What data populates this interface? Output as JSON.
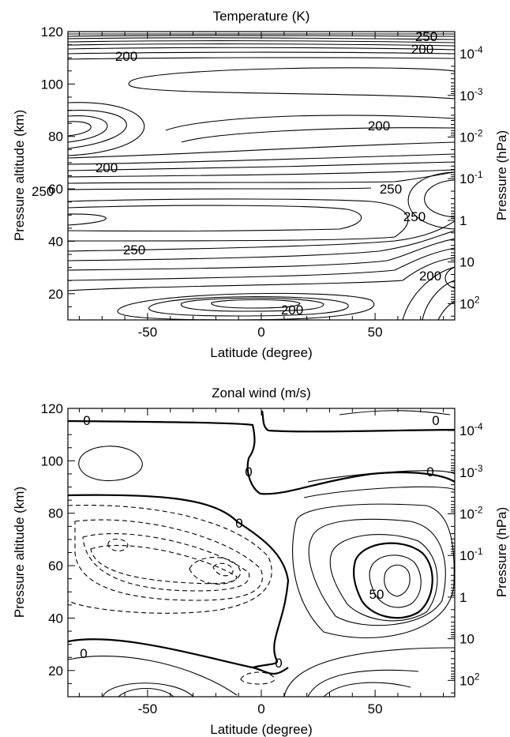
{
  "chart_data": [
    {
      "type": "contour",
      "title": "Temperature (K)",
      "xlabel": "Latitude (degree)",
      "ylabel": "Pressure altitude (km)",
      "y2label": "Pressure (hPa)",
      "xlim": [
        -85,
        85
      ],
      "ylim": [
        10,
        120
      ],
      "xticks": [
        -50,
        0,
        50
      ],
      "xtick_labels": [
        "-50",
        "0",
        "50"
      ],
      "yticks": [
        20,
        40,
        60,
        80,
        100,
        120
      ],
      "ytick_labels": [
        "20",
        "40",
        "60",
        "80",
        "100",
        "120"
      ],
      "y2ticks": [
        {
          "base": "10",
          "exp": "-4"
        },
        {
          "base": "10",
          "exp": "-3"
        },
        {
          "base": "10",
          "exp": "-2"
        },
        {
          "base": "10",
          "exp": "-1"
        },
        {
          "base": "1",
          "exp": ""
        },
        {
          "base": "10",
          "exp": ""
        },
        {
          "base": "10",
          "exp": "2"
        }
      ],
      "contour_labels": [
        {
          "text": "250",
          "lat": 50,
          "alt": 118
        },
        {
          "text": "200",
          "lat": -60,
          "alt": 114
        },
        {
          "text": "200",
          "lat": 70,
          "alt": 115
        },
        {
          "text": "200",
          "lat": 45,
          "alt": 80
        },
        {
          "text": "200",
          "lat": -65,
          "alt": 68
        },
        {
          "text": "250",
          "lat": -75,
          "alt": 60
        },
        {
          "text": "250",
          "lat": 57,
          "alt": 62
        },
        {
          "text": "250",
          "lat": 38,
          "alt": 50
        },
        {
          "text": "250",
          "lat": -55,
          "alt": 37
        },
        {
          "text": "200",
          "lat": 70,
          "alt": 27
        },
        {
          "text": "200",
          "lat": 12,
          "alt": 14
        }
      ]
    },
    {
      "type": "contour",
      "title": "Zonal wind (m/s)",
      "xlabel": "Latitude (degree)",
      "ylabel": "Pressure altitude (km)",
      "y2label": "Pressure (hPa)",
      "xlim": [
        -85,
        85
      ],
      "ylim": [
        10,
        120
      ],
      "xticks": [
        -50,
        0,
        50
      ],
      "xtick_labels": [
        "-50",
        "0",
        "50"
      ],
      "yticks": [
        20,
        40,
        60,
        80,
        100,
        120
      ],
      "ytick_labels": [
        "20",
        "40",
        "60",
        "80",
        "100",
        "120"
      ],
      "y2ticks": [
        {
          "base": "10",
          "exp": "-4"
        },
        {
          "base": "10",
          "exp": "-3"
        },
        {
          "base": "10",
          "exp": "-2"
        },
        {
          "base": "10",
          "exp": "-1"
        },
        {
          "base": "1",
          "exp": ""
        },
        {
          "base": "10",
          "exp": ""
        },
        {
          "base": "10",
          "exp": "2"
        }
      ],
      "contour_labels": [
        {
          "text": "0",
          "lat": -75,
          "alt": 113
        },
        {
          "text": "0",
          "lat": 77,
          "alt": 113
        },
        {
          "text": "0",
          "lat": -5,
          "alt": 88
        },
        {
          "text": "0",
          "lat": 75,
          "alt": 86
        },
        {
          "text": "0",
          "lat": -10,
          "alt": 64
        },
        {
          "text": "50",
          "lat": 50,
          "alt": 40
        },
        {
          "text": "0",
          "lat": -78,
          "alt": 21
        },
        {
          "text": "0",
          "lat": 7,
          "alt": 15
        }
      ],
      "notes": "dashed contours = negative (westward) wind; bold contours = 0 and 50"
    }
  ]
}
